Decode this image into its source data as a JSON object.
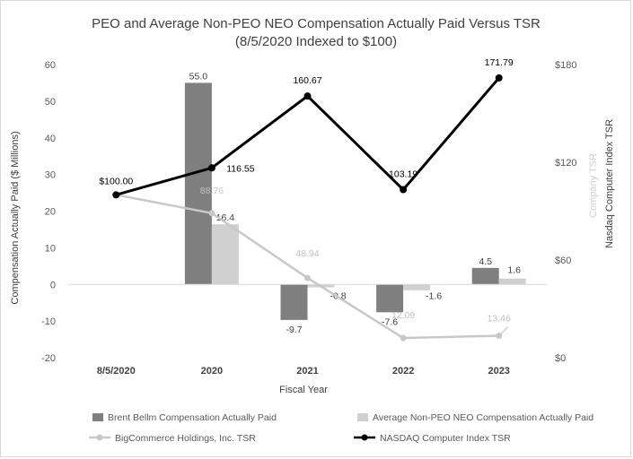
{
  "chart_data": {
    "type": "bar",
    "title": "PEO and Average Non-PEO NEO Compensation Actually Paid Versus TSR",
    "subtitle": "(8/5/2020 Indexed to $100)",
    "xlabel": "Fiscal Year",
    "ylabel": "Compensation Actually Paid ($ Millions)",
    "y2label_company": "Company TSR",
    "y2label_index": "Nasdaq Computer Index TSR",
    "categories": [
      "8/5/2020",
      "2020",
      "2021",
      "2022",
      "2023"
    ],
    "ylim": [
      -20,
      60
    ],
    "yticks": [
      "60",
      "50",
      "40",
      "30",
      "20",
      "10",
      "0",
      "-10",
      "-20"
    ],
    "y2lim": [
      0,
      180
    ],
    "y2ticks": [
      "$180",
      "$120",
      "$60",
      "$0"
    ],
    "bar_series": [
      {
        "name": "Brent Bellm Compensation Actually Paid",
        "color": "#7f7f7f",
        "values": [
          null,
          55.0,
          -9.7,
          -7.6,
          4.5
        ],
        "labels": [
          "",
          "55.0",
          "-9.7",
          "-7.6",
          "4.5"
        ]
      },
      {
        "name": "Average Non-PEO NEO Compensation Actually Paid",
        "color": "#d0d0d0",
        "values": [
          null,
          16.4,
          -0.8,
          -1.6,
          1.6
        ],
        "labels": [
          "",
          "16.4",
          "-0.8",
          "-1.6",
          "1.6"
        ]
      }
    ],
    "line_series": [
      {
        "name": "BigCommerce Holdings, Inc. TSR",
        "color": "#c8c8c8",
        "values": [
          100.0,
          88.76,
          48.94,
          12.09,
          13.46
        ],
        "labels": [
          "",
          "88.76",
          "48.94",
          "12.09",
          "13.46"
        ]
      },
      {
        "name": "NASDAQ Computer Index TSR",
        "color": "#000000",
        "values": [
          100.0,
          116.55,
          160.67,
          103.19,
          171.79
        ],
        "labels": [
          "$100.00",
          "116.55",
          "160.67",
          "103.19",
          "171.79"
        ]
      }
    ]
  }
}
